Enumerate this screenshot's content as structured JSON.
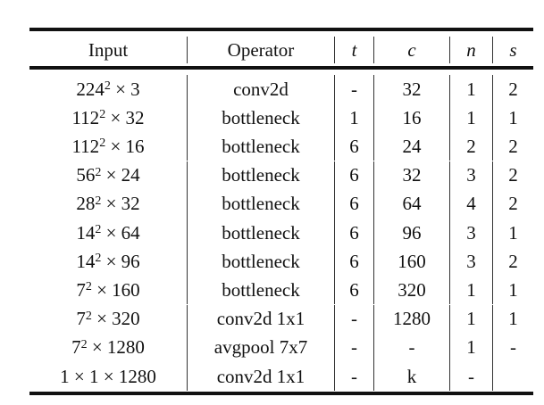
{
  "headers": {
    "input": "Input",
    "operator": "Operator",
    "t": "t",
    "c": "c",
    "n": "n",
    "s": "s"
  },
  "rows": [
    {
      "input": {
        "base": "224",
        "exp": "2",
        "rest": " × 3"
      },
      "operator": "conv2d",
      "t": "-",
      "c": "32",
      "n": "1",
      "s": "2"
    },
    {
      "input": {
        "base": "112",
        "exp": "2",
        "rest": " × 32"
      },
      "operator": "bottleneck",
      "t": "1",
      "c": "16",
      "n": "1",
      "s": "1"
    },
    {
      "input": {
        "base": "112",
        "exp": "2",
        "rest": " × 16"
      },
      "operator": "bottleneck",
      "t": "6",
      "c": "24",
      "n": "2",
      "s": "2"
    },
    {
      "input": {
        "base": "56",
        "exp": "2",
        "rest": " × 24"
      },
      "operator": "bottleneck",
      "t": "6",
      "c": "32",
      "n": "3",
      "s": "2"
    },
    {
      "input": {
        "base": "28",
        "exp": "2",
        "rest": " × 32"
      },
      "operator": "bottleneck",
      "t": "6",
      "c": "64",
      "n": "4",
      "s": "2"
    },
    {
      "input": {
        "base": "14",
        "exp": "2",
        "rest": " × 64"
      },
      "operator": "bottleneck",
      "t": "6",
      "c": "96",
      "n": "3",
      "s": "1"
    },
    {
      "input": {
        "base": "14",
        "exp": "2",
        "rest": " × 96"
      },
      "operator": "bottleneck",
      "t": "6",
      "c": "160",
      "n": "3",
      "s": "2"
    },
    {
      "input": {
        "base": "7",
        "exp": "2",
        "rest": " × 160"
      },
      "operator": "bottleneck",
      "t": "6",
      "c": "320",
      "n": "1",
      "s": "1"
    },
    {
      "input": {
        "base": "7",
        "exp": "2",
        "rest": " × 320"
      },
      "operator": "conv2d 1x1",
      "t": "-",
      "c": "1280",
      "n": "1",
      "s": "1"
    },
    {
      "input": {
        "base": "7",
        "exp": "2",
        "rest": " × 1280"
      },
      "operator": "avgpool 7x7",
      "t": "-",
      "c": "-",
      "n": "1",
      "s": "-"
    },
    {
      "input": {
        "base": "1 × 1 × 1280",
        "exp": null,
        "rest": ""
      },
      "operator": "conv2d 1x1",
      "t": "-",
      "c": "k",
      "n": "-",
      "s": ""
    }
  ]
}
